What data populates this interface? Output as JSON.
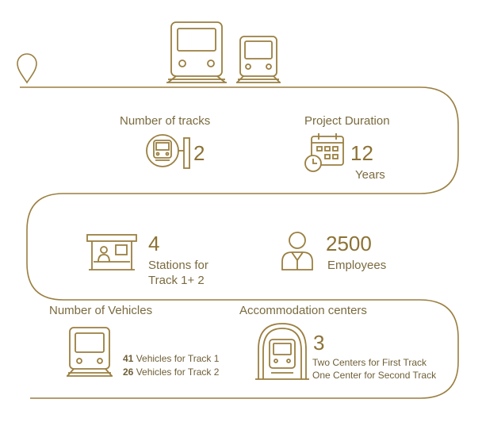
{
  "stats": {
    "tracks": {
      "label": "Number of  tracks",
      "value": "2"
    },
    "duration": {
      "label": "Project Duration",
      "value": "12",
      "unit": "Years"
    },
    "stations": {
      "value": "4",
      "line1": "Stations for",
      "line2": "Track 1+ 2"
    },
    "employees": {
      "value": "2500",
      "unit": "Employees"
    },
    "vehicles": {
      "label": "Number of Vehicles",
      "track1_count": "41",
      "track1_text": " Vehicles for Track 1",
      "track2_count": "26",
      "track2_text": " Vehicles for Track 2"
    },
    "accommodation": {
      "label": "Accommodation centers",
      "value": "3",
      "line1": "Two Centers for First Track",
      "line2": "One Center for Second Track"
    }
  },
  "icons": {
    "start": "location-pin-icon",
    "header_trains": "train-icon",
    "tracks": "train-station-sign-icon",
    "duration": "calendar-clock-icon",
    "stations": "station-booth-icon",
    "employees": "person-icon",
    "vehicles": "train-icon",
    "accommodation": "tunnel-train-icon"
  },
  "colors": {
    "gold": "#9a7f40",
    "text": "#7a6a3e"
  }
}
